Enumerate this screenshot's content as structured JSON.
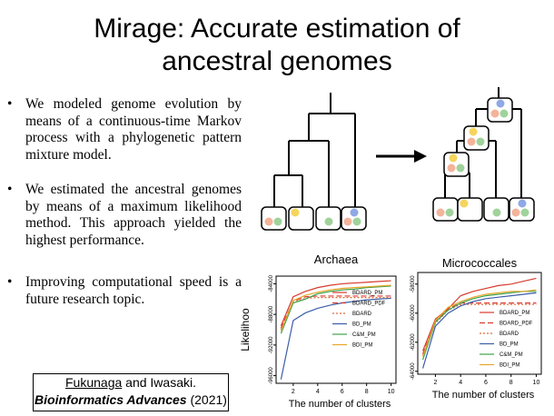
{
  "slide": {
    "title_line1": "Mirage: Accurate estimation of",
    "title_line2": "ancestral genomes",
    "bullets": [
      "We modeled genome evolution by means of a continuous-time Markov process with a phylogenetic pattern mixture model.",
      "We estimated the ancestral genomes by means of a maximum likelihood method. This approach yielded the highest performance.",
      "Improving computational speed is a future research topic."
    ],
    "bullet_symbol": "•",
    "citation": {
      "author1": "Fukunaga",
      "rest1": " and Iwasaki.",
      "journal": "Bioinformatics Advances",
      "year": " (2021)"
    }
  },
  "chart_data": [
    {
      "type": "line",
      "title": "Archaea",
      "xlabel": "The number of clusters",
      "ylabel": "Likelihoo",
      "x": [
        1,
        2,
        3,
        4,
        5,
        6,
        7,
        8,
        9,
        10
      ],
      "xticks": [
        "2",
        "4",
        "6",
        "8",
        "10"
      ],
      "yticks": [
        "-96000",
        "-92000",
        "-88000",
        "-84000"
      ],
      "ylim": [
        -97000,
        -83000
      ],
      "legend": "right",
      "series": [
        {
          "name": "BDARD_PM",
          "color": "#d73b2f",
          "dash": "solid",
          "values": [
            -89500,
            -85700,
            -85000,
            -84500,
            -84200,
            -84000,
            -83900,
            -83800,
            -83700,
            -83600
          ]
        },
        {
          "name": "BDARD_PDF",
          "color": "#d73b2f",
          "dash": "dashed",
          "values": [
            -89800,
            -86300,
            -85700,
            -85600,
            -85600,
            -85600,
            -85600,
            -85600,
            -85600,
            -85600
          ]
        },
        {
          "name": "BDARD",
          "color": "#e06a3a",
          "dash": "dotted",
          "values": [
            -90000,
            -86500,
            -85900,
            -85800,
            -85800,
            -85800,
            -85800,
            -85800,
            -85800,
            -85800
          ]
        },
        {
          "name": "BD_PM",
          "color": "#3b5ea8",
          "dash": "solid",
          "values": [
            -96500,
            -88800,
            -87800,
            -87200,
            -86800,
            -86500,
            -86300,
            -86100,
            -86000,
            -85900
          ]
        },
        {
          "name": "C&M_PM",
          "color": "#3fa34d",
          "dash": "solid",
          "values": [
            -90500,
            -86500,
            -86000,
            -85300,
            -85000,
            -84800,
            -84700,
            -84500,
            -84400,
            -84300
          ]
        },
        {
          "name": "BDI_PM",
          "color": "#e8a628",
          "dash": "solid",
          "values": [
            -90200,
            -86200,
            -85500,
            -85100,
            -84800,
            -84600,
            -84500,
            -84400,
            -84300,
            -84200
          ]
        }
      ]
    },
    {
      "type": "line",
      "title": "Micrococcales",
      "xlabel": "The number of clusters",
      "ylabel": "",
      "x": [
        1,
        2,
        3,
        4,
        5,
        6,
        7,
        8,
        9,
        10
      ],
      "xticks": [
        "2",
        "4",
        "6",
        "8",
        "10"
      ],
      "yticks": [
        "-64000",
        "-62000",
        "-60000",
        "-58000"
      ],
      "ylim": [
        -64200,
        -57200
      ],
      "legend": "right",
      "series": [
        {
          "name": "BDARD_PM",
          "color": "#d73b2f",
          "dash": "solid",
          "values": [
            -62600,
            -60400,
            -59700,
            -58800,
            -58500,
            -58300,
            -58100,
            -58000,
            -57800,
            -57600
          ]
        },
        {
          "name": "BDARD_PDF",
          "color": "#d73b2f",
          "dash": "dashed",
          "values": [
            -62800,
            -60600,
            -59700,
            -59300,
            -59300,
            -59300,
            -59300,
            -59300,
            -59300,
            -59300
          ]
        },
        {
          "name": "BDARD",
          "color": "#e06a3a",
          "dash": "dotted",
          "values": [
            -62900,
            -60700,
            -59800,
            -59400,
            -59400,
            -59400,
            -59400,
            -59400,
            -59400,
            -59400
          ]
        },
        {
          "name": "BD_PM",
          "color": "#3b5ea8",
          "dash": "solid",
          "values": [
            -63800,
            -60900,
            -60000,
            -59500,
            -59200,
            -59000,
            -58900,
            -58800,
            -58700,
            -58600
          ]
        },
        {
          "name": "C&M_PM",
          "color": "#3fa34d",
          "dash": "solid",
          "values": [
            -63200,
            -60600,
            -59800,
            -59300,
            -59000,
            -58800,
            -58700,
            -58600,
            -58500,
            -58500
          ]
        },
        {
          "name": "BDI_PM",
          "color": "#e8a628",
          "dash": "solid",
          "values": [
            -63000,
            -60500,
            -59600,
            -59200,
            -58900,
            -58700,
            -58600,
            -58500,
            -58500,
            -58400
          ]
        }
      ]
    }
  ]
}
